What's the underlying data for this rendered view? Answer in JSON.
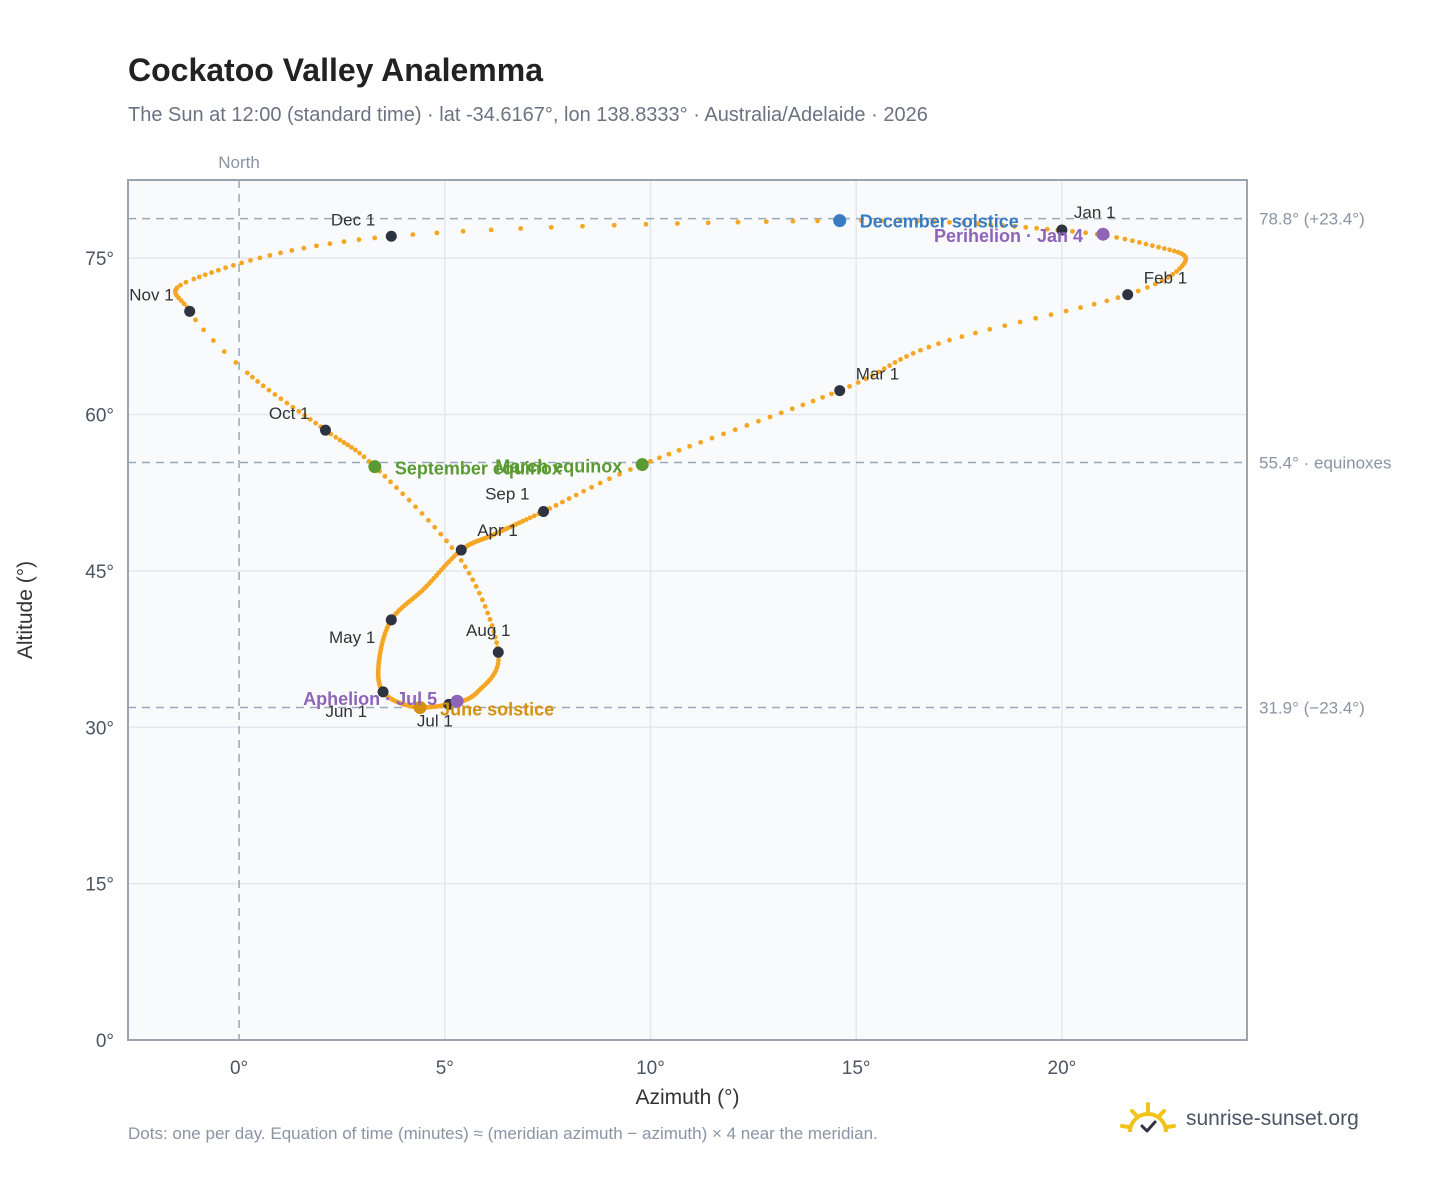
{
  "header": {
    "title": "Cockatoo Valley Analemma",
    "subtitle": "The Sun at 12:00 (standard time) · lat -34.6167°, lon 138.8333° · Australia/Adelaide · 2026"
  },
  "footer": {
    "note": "Dots: one per day. Equation of time (minutes) ≈ (meridian azimuth − azimuth) × 4 near the meridian.",
    "brand": "sunrise-sunset.org",
    "brand_icon": "sun-logo-icon"
  },
  "colors": {
    "path": "#f5a623",
    "month": "#2d3340",
    "equinox": "#5a9a32",
    "december": "#3a7cc4",
    "june": "#d4900e",
    "perihelion": "#8e63b8",
    "grid": "#e3e8ef",
    "ref": "#9aa8b8",
    "frame": "#9aa3b0",
    "plot_bg": "#f8fafc"
  },
  "chart_data": {
    "type": "scatter",
    "xlabel": "Azimuth (°)",
    "ylabel": "Altitude (°)",
    "xlim": [
      -2.7,
      24.5
    ],
    "ylim": [
      0,
      82.5
    ],
    "xticks": [
      0,
      5,
      10,
      15,
      20
    ],
    "yticks": [
      0,
      15,
      30,
      45,
      60,
      75
    ],
    "x_tick_labels": [
      "0°",
      "5°",
      "10°",
      "15°",
      "20°"
    ],
    "y_tick_labels": [
      "0°",
      "15°",
      "30°",
      "45°",
      "60°",
      "75°"
    ],
    "grid": true,
    "meridian": {
      "azimuth": 0,
      "label": "North"
    },
    "reference_lines": [
      {
        "altitude": 78.8,
        "label": "78.8° (+23.4°)"
      },
      {
        "altitude": 55.4,
        "label": "55.4° · equinoxes"
      },
      {
        "altitude": 31.9,
        "label": "31.9° (−23.4°)"
      }
    ],
    "path_anchors": [
      {
        "day": 0,
        "az": 19.9,
        "alt": 77.7
      },
      {
        "day": 10,
        "az": 22.2,
        "alt": 76.2
      },
      {
        "day": 20,
        "az": 23.0,
        "alt": 74.7
      },
      {
        "day": 31,
        "az": 21.6,
        "alt": 71.5
      },
      {
        "day": 45,
        "az": 17.0,
        "alt": 66.8
      },
      {
        "day": 59,
        "az": 14.6,
        "alt": 62.3
      },
      {
        "day": 78,
        "az": 9.8,
        "alt": 55.2
      },
      {
        "day": 90,
        "az": 7.4,
        "alt": 50.7
      },
      {
        "day": 105,
        "az": 6.2,
        "alt": 48.5
      },
      {
        "day": 120,
        "az": 5.4,
        "alt": 47.0
      },
      {
        "day": 135,
        "az": 4.5,
        "alt": 43.3
      },
      {
        "day": 151,
        "az": 3.7,
        "alt": 40.3
      },
      {
        "day": 166,
        "az": 3.4,
        "alt": 36.3
      },
      {
        "day": 181,
        "az": 3.5,
        "alt": 33.4
      },
      {
        "day": 195,
        "az": 4.2,
        "alt": 32.0
      },
      {
        "day": 212,
        "az": 5.1,
        "alt": 32.2
      },
      {
        "day": 228,
        "az": 5.8,
        "alt": 33.4
      },
      {
        "day": 243,
        "az": 6.3,
        "alt": 37.2
      },
      {
        "day": 258,
        "az": 5.4,
        "alt": 46.0
      },
      {
        "day": 273,
        "az": 3.3,
        "alt": 55.0
      },
      {
        "day": 284,
        "az": 2.1,
        "alt": 58.5
      },
      {
        "day": 298,
        "az": 0.2,
        "alt": 64.0
      },
      {
        "day": 304,
        "az": -1.2,
        "alt": 69.9
      },
      {
        "day": 315,
        "az": -1.1,
        "alt": 73.0
      },
      {
        "day": 334,
        "az": 3.7,
        "alt": 77.1
      },
      {
        "day": 350,
        "az": 14.6,
        "alt": 78.6
      },
      {
        "day": 365,
        "az": 19.9,
        "alt": 77.7
      }
    ],
    "month_markers": [
      {
        "label": "Jan 1",
        "az": 20.0,
        "alt": 77.7
      },
      {
        "label": "Feb 1",
        "az": 21.6,
        "alt": 71.5
      },
      {
        "label": "Mar 1",
        "az": 14.6,
        "alt": 62.3
      },
      {
        "label": "Apr 1",
        "az": 5.4,
        "alt": 47.0
      },
      {
        "label": "May 1",
        "az": 3.7,
        "alt": 40.3
      },
      {
        "label": "Jun 1",
        "az": 3.5,
        "alt": 33.4
      },
      {
        "label": "Jul 1",
        "az": 5.1,
        "alt": 32.2
      },
      {
        "label": "Aug 1",
        "az": 6.3,
        "alt": 37.2
      },
      {
        "label": "Sep 1",
        "az": 7.4,
        "alt": 50.7
      },
      {
        "label": "Oct 1",
        "az": 2.1,
        "alt": 58.5
      },
      {
        "label": "Nov 1",
        "az": -1.2,
        "alt": 69.9
      },
      {
        "label": "Dec 1",
        "az": 3.7,
        "alt": 77.1
      }
    ],
    "events": [
      {
        "label": "December solstice",
        "az": 14.6,
        "alt": 78.6,
        "color_key": "december"
      },
      {
        "label": "Perihelion · Jan 4",
        "az": 21.0,
        "alt": 77.3,
        "color_key": "perihelion"
      },
      {
        "label": "March equinox",
        "az": 9.8,
        "alt": 55.2,
        "color_key": "equinox"
      },
      {
        "label": "September equinox",
        "az": 3.3,
        "alt": 55.0,
        "color_key": "equinox"
      },
      {
        "label": "June solstice",
        "az": 4.4,
        "alt": 31.9,
        "color_key": "june"
      },
      {
        "label": "Aphelion · Jul 5",
        "az": 5.3,
        "alt": 32.5,
        "color_key": "perihelion"
      }
    ]
  }
}
